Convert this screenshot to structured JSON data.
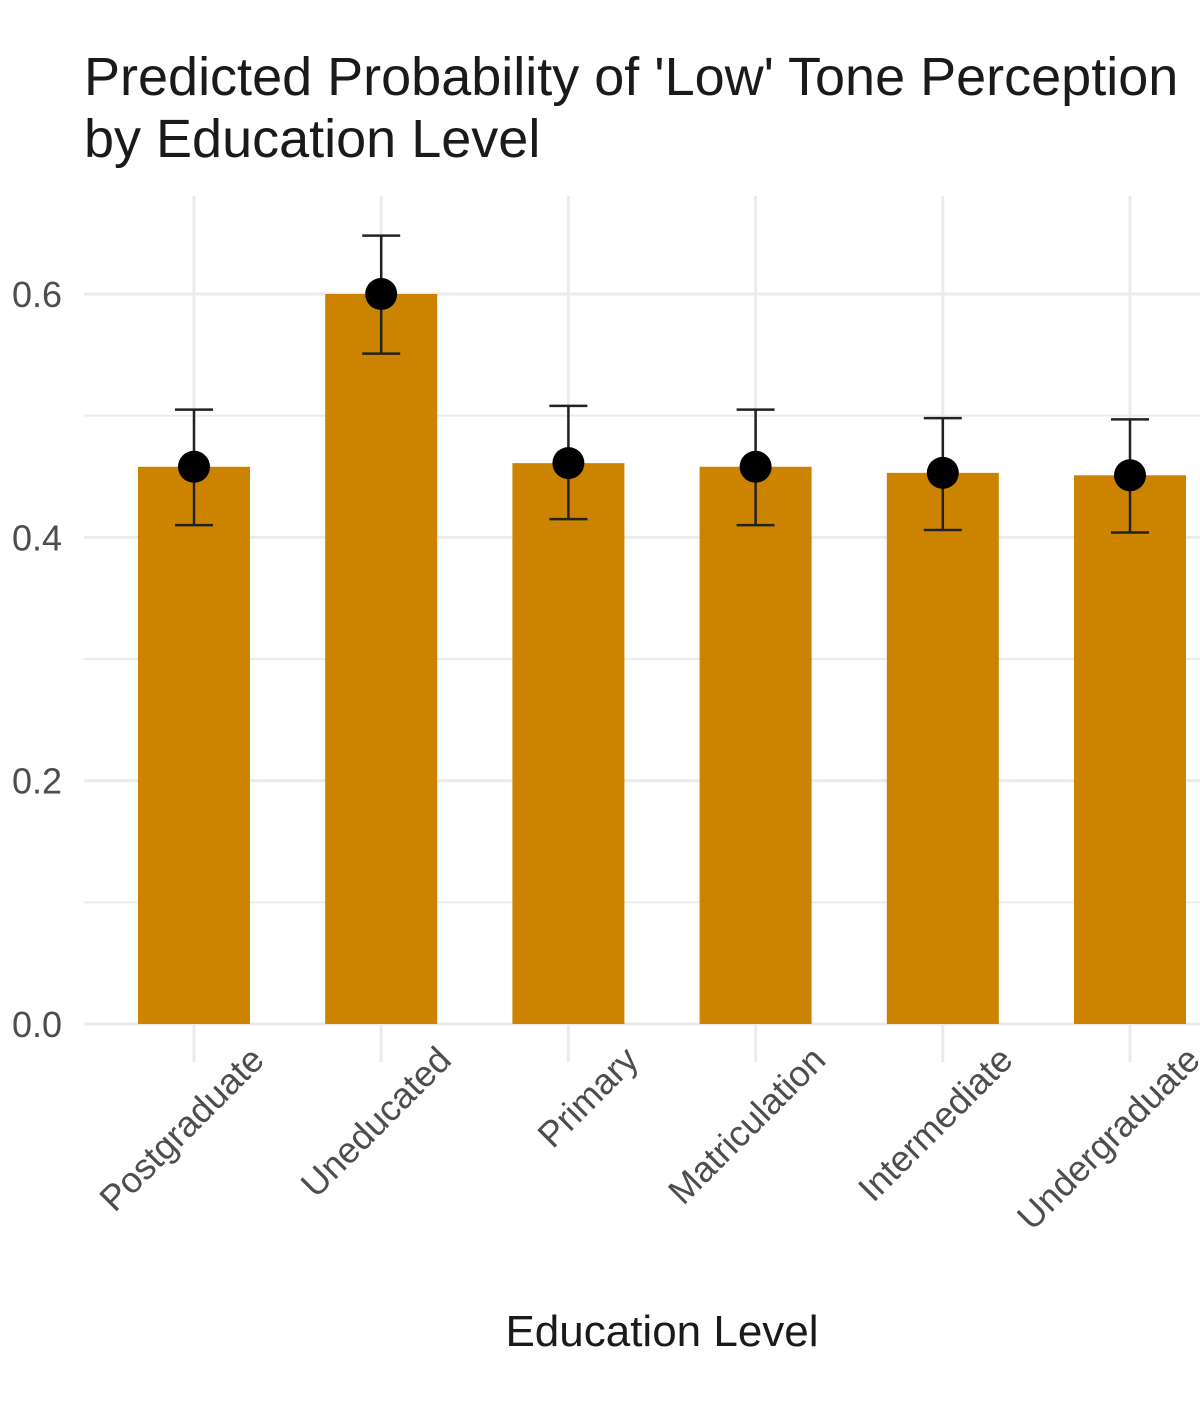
{
  "chart_data": {
    "type": "bar",
    "title": "Predicted Probability of 'Low' Tone Perception by Education Level",
    "title_lines": [
      "Predicted Probability of 'Low' Tone Perception",
      "by Education Level"
    ],
    "xlabel": "Education Level",
    "ylabel": "",
    "categories": [
      "Postgraduate",
      "Uneducated",
      "Primary",
      "Matriculation",
      "Intermediate",
      "Undergraduate"
    ],
    "values": [
      0.458,
      0.6,
      0.461,
      0.458,
      0.453,
      0.451
    ],
    "error_low": [
      0.41,
      0.551,
      0.415,
      0.41,
      0.406,
      0.404
    ],
    "error_high": [
      0.505,
      0.648,
      0.508,
      0.505,
      0.498,
      0.497
    ],
    "ylim": [
      0,
      0.66
    ],
    "yticks": [
      "0.0",
      "0.2",
      "0.4",
      "0.6"
    ],
    "ytick_values": [
      0,
      0.2,
      0.4,
      0.6
    ],
    "grid": true,
    "colors": {
      "bar": "#CC8400",
      "point": "#000000",
      "errorbar": "#222222",
      "grid": "#ebebeb"
    }
  }
}
